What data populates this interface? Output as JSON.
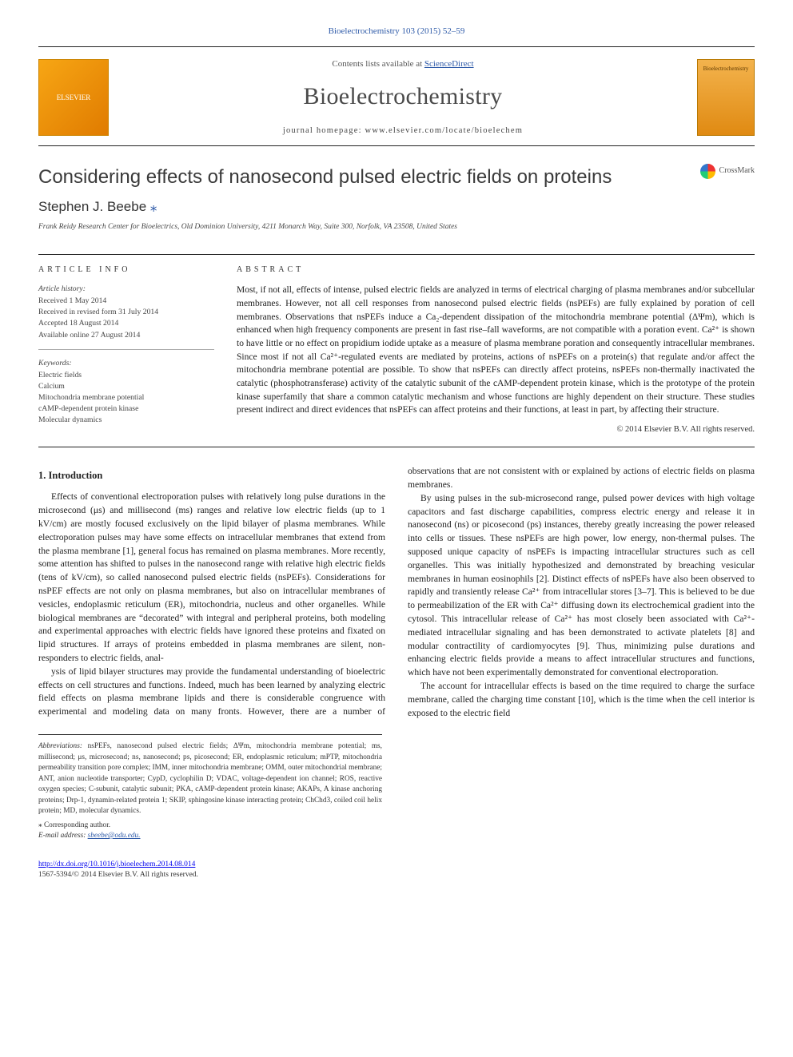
{
  "top_link": "Bioelectrochemistry 103 (2015) 52–59",
  "masthead": {
    "publisher": "ELSEVIER",
    "lists_prefix": "Contents lists available at ",
    "lists_link": "ScienceDirect",
    "journal_name": "Bioelectrochemistry",
    "homepage_label": "journal homepage: ",
    "homepage_url": "www.elsevier.com/locate/bioelechem",
    "cover_text": "Bioelectrochemistry"
  },
  "title_block": {
    "title": "Considering effects of nanosecond pulsed electric fields on proteins",
    "crossmark": "CrossMark",
    "author": "Stephen J. Beebe",
    "affiliation": "Frank Reidy Research Center for Bioelectrics, Old Dominion University, 4211 Monarch Way, Suite 300, Norfolk, VA 23508, United States"
  },
  "article_info": {
    "label": "ARTICLE INFO",
    "history_head": "Article history:",
    "history": [
      "Received 1 May 2014",
      "Received in revised form 31 July 2014",
      "Accepted 18 August 2014",
      "Available online 27 August 2014"
    ],
    "keywords_head": "Keywords:",
    "keywords": [
      "Electric fields",
      "Calcium",
      "Mitochondria membrane potential",
      "cAMP-dependent protein kinase",
      "Molecular dynamics"
    ]
  },
  "abstract": {
    "label": "ABSTRACT",
    "text": "Most, if not all, effects of intense, pulsed electric fields are analyzed in terms of electrical charging of plasma membranes and/or subcellular membranes. However, not all cell responses from nanosecond pulsed electric fields (nsPEFs) are fully explained by poration of cell membranes. Observations that nsPEFs induce a Ca₂-dependent dissipation of the mitochondria membrane potential (ΔΨm), which is enhanced when high frequency components are present in fast rise–fall waveforms, are not compatible with a poration event. Ca²⁺ is shown to have little or no effect on propidium iodide uptake as a measure of plasma membrane poration and consequently intracellular membranes. Since most if not all Ca²⁺-regulated events are mediated by proteins, actions of nsPEFs on a protein(s) that regulate and/or affect the mitochondria membrane potential are possible. To show that nsPEFs can directly affect proteins, nsPEFs non-thermally inactivated the catalytic (phosphotransferase) activity of the catalytic subunit of the cAMP-dependent protein kinase, which is the prototype of the protein kinase superfamily that share a common catalytic mechanism and whose functions are highly dependent on their structure. These studies present indirect and direct evidences that nsPEFs can affect proteins and their functions, at least in part, by affecting their structure.",
    "copyright": "© 2014 Elsevier B.V. All rights reserved."
  },
  "body": {
    "intro_head": "1. Introduction",
    "p1": "Effects of conventional electroporation pulses with relatively long pulse durations in the microsecond (μs) and millisecond (ms) ranges and relative low electric fields (up to 1 kV/cm) are mostly focused exclusively on the lipid bilayer of plasma membranes. While electroporation pulses may have some effects on intracellular membranes that extend from the plasma membrane [1], general focus has remained on plasma membranes. More recently, some attention has shifted to pulses in the nanosecond range with relative high electric fields (tens of kV/cm), so called nanosecond pulsed electric fields (nsPEFs). Considerations for nsPEF effects are not only on plasma membranes, but also on intracellular membranes of vesicles, endoplasmic reticulum (ER), mitochondria, nucleus and other organelles. While biological membranes are “decorated” with integral and peripheral proteins, both modeling and experimental approaches with electric fields have ignored these proteins and fixated on lipid structures. If arrays of proteins embedded in plasma membranes are silent, non-responders to electric fields, anal-",
    "p2": "ysis of lipid bilayer structures may provide the fundamental understanding of bioelectric effects on cell structures and functions. Indeed, much has been learned by analyzing electric field effects on plasma membrane lipids and there is considerable congruence with experimental and modeling data on many fronts. However, there are a number of observations that are not consistent with or explained by actions of electric fields on plasma membranes.",
    "p3": "By using pulses in the sub-microsecond range, pulsed power devices with high voltage capacitors and fast discharge capabilities, compress electric energy and release it in nanosecond (ns) or picosecond (ps) instances, thereby greatly increasing the power released into cells or tissues. These nsPEFs are high power, low energy, non-thermal pulses. The supposed unique capacity of nsPEFs is impacting intracellular structures such as cell organelles. This was initially hypothesized and demonstrated by breaching vesicular membranes in human eosinophils [2]. Distinct effects of nsPEFs have also been observed to rapidly and transiently release Ca²⁺ from intracellular stores [3–7]. This is believed to be due to permeabilization of the ER with Ca²⁺ diffusing down its electrochemical gradient into the cytosol. This intracellular release of Ca²⁺ has most closely been associated with Ca²⁺-mediated intracellular signaling and has been demonstrated to activate platelets [8] and modular contractility of cardiomyocytes [9]. Thus, minimizing pulse durations and enhancing electric fields provide a means to affect intracellular structures and functions, which have not been experimentally demonstrated for conventional electroporation.",
    "p4": "The account for intracellular effects is based on the time required to charge the surface membrane, called the charging time constant [10], which is the time when the cell interior is exposed to the electric field",
    "refs": {
      "r1": "[1]",
      "r2": "[2]",
      "r3_7": "[3–7]",
      "r8": "[8]",
      "r9": "[9]",
      "r10": "[10]"
    }
  },
  "footnotes": {
    "abbr_head": "Abbreviations:",
    "abbr": " nsPEFs, nanosecond pulsed electric fields; ΔΨm, mitochondria membrane potential; ms, millisecond; μs, microsecond; ns, nanosecond; ps, picosecond; ER, endoplasmic reticulum; mPTP, mitochondria permeability transition pore complex; IMM, inner mitochondria membrane; OMM, outer mitochondrial membrane; ANT, anion nucleotide transporter; CypD, cyclophilin D; VDAC, voltage-dependent ion channel; ROS, reactive oxygen species; C-subunit, catalytic subunit; PKA, cAMP-dependent protein kinase; AKAPs, A kinase anchoring proteins; Drp-1, dynamin-related protein 1; SKIP, sphingosine kinase interacting protein; ChChd3, coiled coil helix protein; MD, molecular dynamics.",
    "corr_label": "⁎ Corresponding author.",
    "email_label": "E-mail address: ",
    "email": "sbeebe@odu.edu."
  },
  "footer": {
    "doi": "http://dx.doi.org/10.1016/j.bioelechem.2014.08.014",
    "issn_copy": "1567-5394/© 2014 Elsevier B.V. All rights reserved."
  },
  "colors": {
    "link": "#2e5aa8",
    "text": "#222222",
    "rule": "#222222",
    "publisher_bg": "#f7a614"
  }
}
